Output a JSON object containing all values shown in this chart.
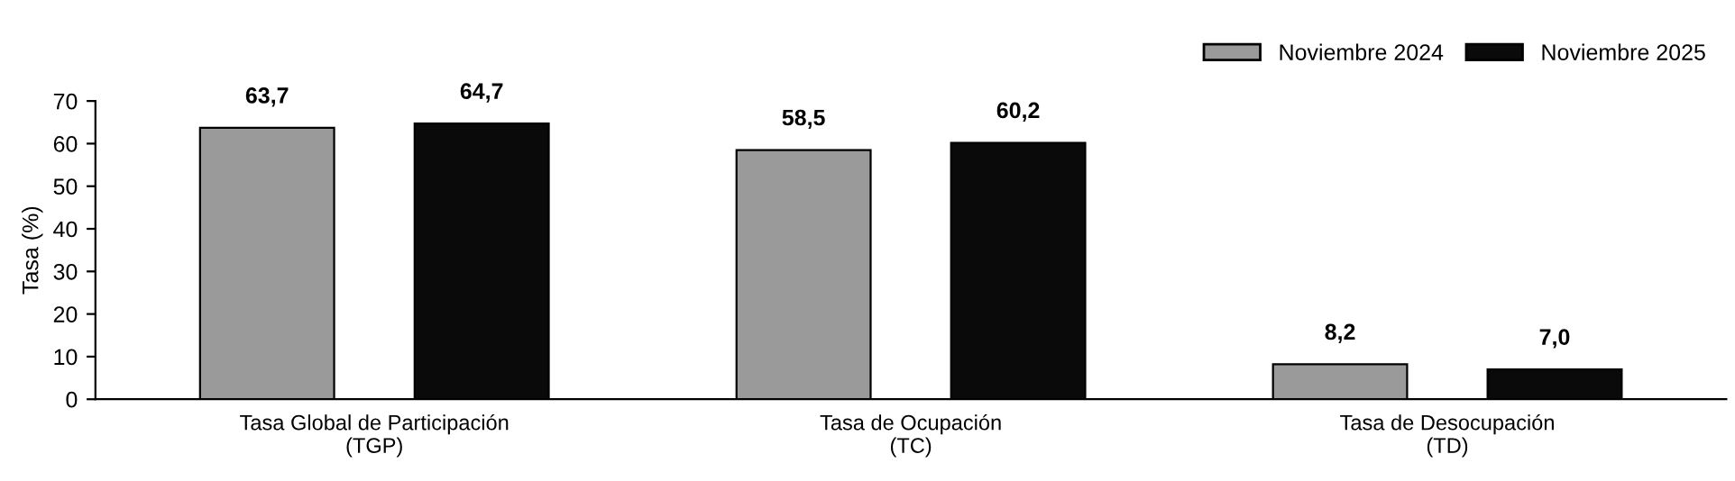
{
  "chart_data": {
    "type": "bar",
    "ylabel": "Tasa (%)",
    "categories": [
      "Tasa Global de Participación\n(TGP)",
      "Tasa de Ocupación\n(TC)",
      "Tasa de Desocupación\n(TD)"
    ],
    "series": [
      {
        "name": "Noviembre 2024",
        "color": "#9a9a9a",
        "values": [
          63.7,
          58.5,
          8.2
        ],
        "value_labels": [
          "63,7",
          "58,5",
          "8,2"
        ]
      },
      {
        "name": "Noviembre 2025",
        "color": "#0a0a0a",
        "values": [
          64.7,
          60.2,
          7.0
        ],
        "value_labels": [
          "64,7",
          "60,2",
          "7,0"
        ]
      }
    ],
    "ylim": [
      0,
      70
    ],
    "yticks": [
      0,
      10,
      20,
      30,
      40,
      50,
      60,
      70
    ],
    "grid": false,
    "legend": "top right"
  }
}
